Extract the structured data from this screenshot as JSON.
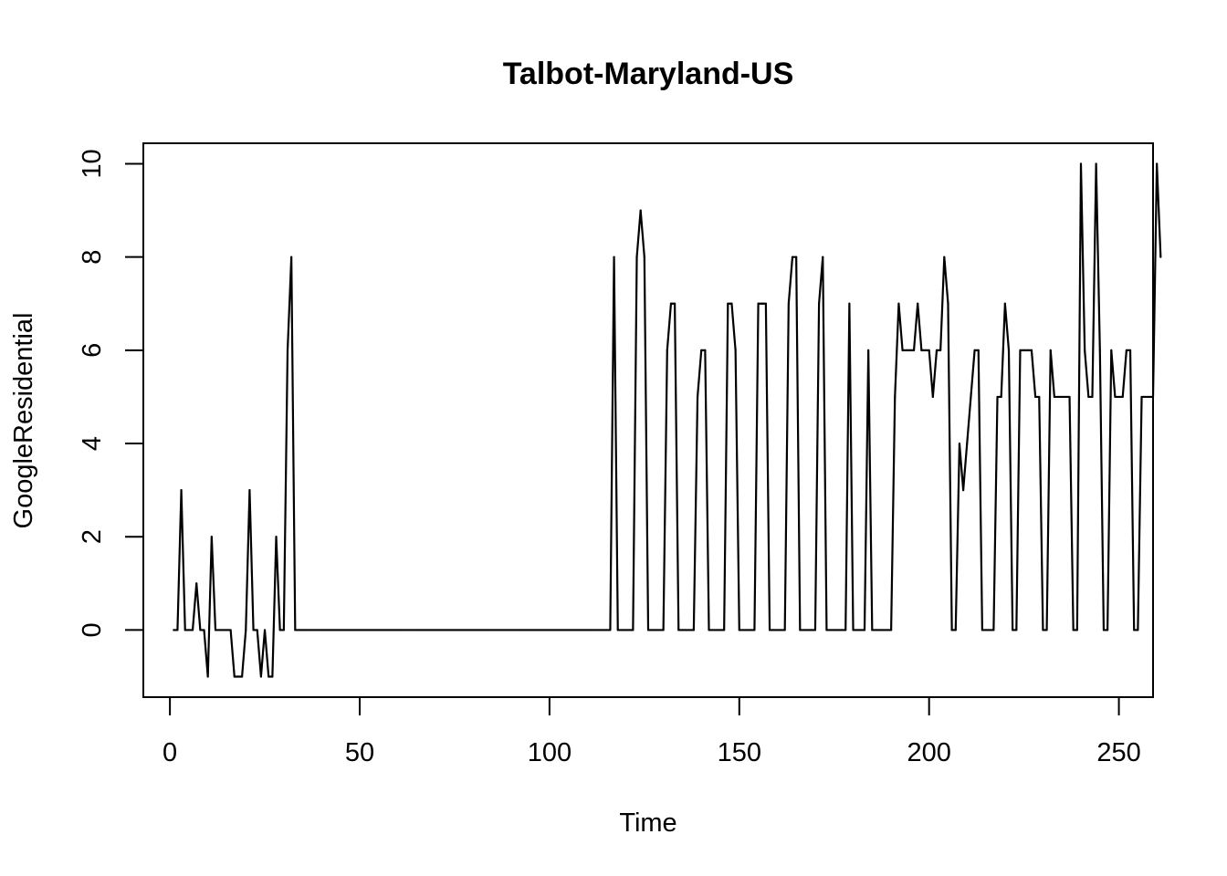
{
  "chart_data": {
    "type": "line",
    "title": "Talbot-Maryland-US",
    "xlabel": "Time",
    "ylabel": "GoogleResidential",
    "xlim": [
      -7,
      259
    ],
    "ylim": [
      -1.44,
      10.44
    ],
    "xticks": [
      0,
      50,
      100,
      150,
      200,
      250
    ],
    "yticks": [
      0,
      2,
      4,
      6,
      8,
      10
    ],
    "grid": false,
    "series": [
      {
        "x_start": 1,
        "values": [
          0,
          0,
          3,
          0,
          0,
          0,
          1,
          0,
          0,
          -1,
          2,
          0,
          0,
          0,
          0,
          0,
          -1,
          -1,
          -1,
          0,
          3,
          0,
          0,
          -1,
          0,
          -1,
          -1,
          2,
          0,
          0,
          6,
          8,
          0,
          0,
          0,
          0,
          0,
          0,
          0,
          0,
          0,
          0,
          0,
          0,
          0,
          0,
          0,
          0,
          0,
          0,
          0,
          0,
          0,
          0,
          0,
          0,
          0,
          0,
          0,
          0,
          0,
          0,
          0,
          0,
          0,
          0,
          0,
          0,
          0,
          0,
          0,
          0,
          0,
          0,
          0,
          0,
          0,
          0,
          0,
          0,
          0,
          0,
          0,
          0,
          0,
          0,
          0,
          0,
          0,
          0,
          0,
          0,
          0,
          0,
          0,
          0,
          0,
          0,
          0,
          0,
          0,
          0,
          0,
          0,
          0,
          0,
          0,
          0,
          0,
          0,
          0,
          0,
          0,
          0,
          0,
          0,
          8,
          0,
          0,
          0,
          0,
          0,
          8,
          9,
          8,
          0,
          0,
          0,
          0,
          0,
          6,
          7,
          7,
          0,
          0,
          0,
          0,
          0,
          5,
          6,
          6,
          0,
          0,
          0,
          0,
          0,
          7,
          7,
          6,
          0,
          0,
          0,
          0,
          0,
          7,
          7,
          7,
          0,
          0,
          0,
          0,
          0,
          7,
          8,
          8,
          0,
          0,
          0,
          0,
          0,
          7,
          8,
          0,
          0,
          0,
          0,
          0,
          0,
          7,
          0,
          0,
          0,
          0,
          6,
          0,
          0,
          0,
          0,
          0,
          0,
          5,
          7,
          6,
          6,
          6,
          6,
          7,
          6,
          6,
          6,
          5,
          6,
          6,
          8,
          7,
          0,
          0,
          4,
          3,
          4,
          5,
          6,
          6,
          0,
          0,
          0,
          0,
          5,
          5,
          7,
          6,
          0,
          0,
          6,
          6,
          6,
          6,
          5,
          5,
          0,
          0,
          6,
          5,
          5,
          5,
          5,
          5,
          0,
          0,
          10,
          6,
          5,
          5,
          10,
          6,
          0,
          0,
          6,
          5,
          5,
          5,
          6,
          6,
          0,
          0,
          5,
          5,
          5,
          5,
          10,
          8
        ]
      }
    ]
  }
}
